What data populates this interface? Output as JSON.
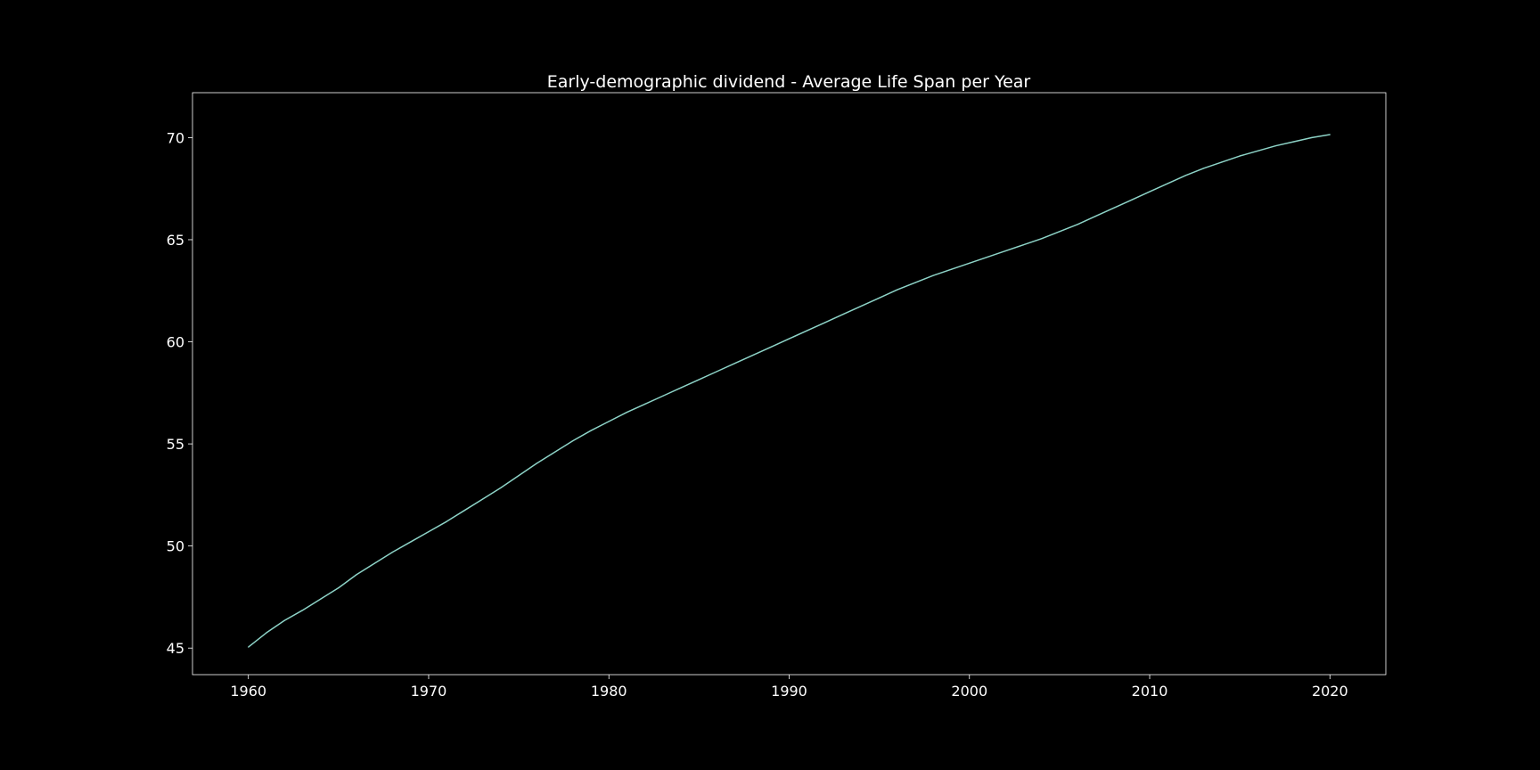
{
  "colors": {
    "background": "#000000",
    "axes_edge": "#ffffff",
    "line": "#8dd3c7",
    "text": "#ffffff"
  },
  "chart_data": {
    "type": "line",
    "title": "Early-demographic dividend - Average Life Span per Year",
    "xlabel": "",
    "ylabel": "",
    "xlim": [
      1956.9,
      2023.1
    ],
    "ylim": [
      43.7,
      72.2
    ],
    "grid": false,
    "xticks": [
      1960,
      1970,
      1980,
      1990,
      2000,
      2010,
      2020
    ],
    "yticks": [
      45,
      50,
      55,
      60,
      65,
      70
    ],
    "x": [
      1960,
      1961,
      1962,
      1963,
      1964,
      1965,
      1966,
      1967,
      1968,
      1969,
      1970,
      1971,
      1972,
      1973,
      1974,
      1975,
      1976,
      1977,
      1978,
      1979,
      1980,
      1981,
      1982,
      1983,
      1984,
      1985,
      1986,
      1987,
      1988,
      1989,
      1990,
      1991,
      1992,
      1993,
      1994,
      1995,
      1996,
      1997,
      1998,
      1999,
      2000,
      2001,
      2002,
      2003,
      2004,
      2005,
      2006,
      2007,
      2008,
      2009,
      2010,
      2011,
      2012,
      2013,
      2014,
      2015,
      2016,
      2017,
      2018,
      2019,
      2020
    ],
    "series": [
      {
        "values": [
          45.05,
          45.75,
          46.35,
          46.85,
          47.4,
          47.95,
          48.6,
          49.15,
          49.7,
          50.2,
          50.7,
          51.2,
          51.75,
          52.3,
          52.85,
          53.45,
          54.05,
          54.6,
          55.15,
          55.65,
          56.1,
          56.55,
          56.95,
          57.35,
          57.75,
          58.15,
          58.55,
          58.95,
          59.35,
          59.75,
          60.15,
          60.55,
          60.95,
          61.35,
          61.75,
          62.15,
          62.55,
          62.9,
          63.25,
          63.55,
          63.85,
          64.15,
          64.45,
          64.75,
          65.05,
          65.4,
          65.75,
          66.15,
          66.55,
          66.95,
          67.35,
          67.75,
          68.15,
          68.5,
          68.8,
          69.1,
          69.35,
          69.6,
          69.8,
          70.0,
          70.15
        ]
      }
    ]
  }
}
